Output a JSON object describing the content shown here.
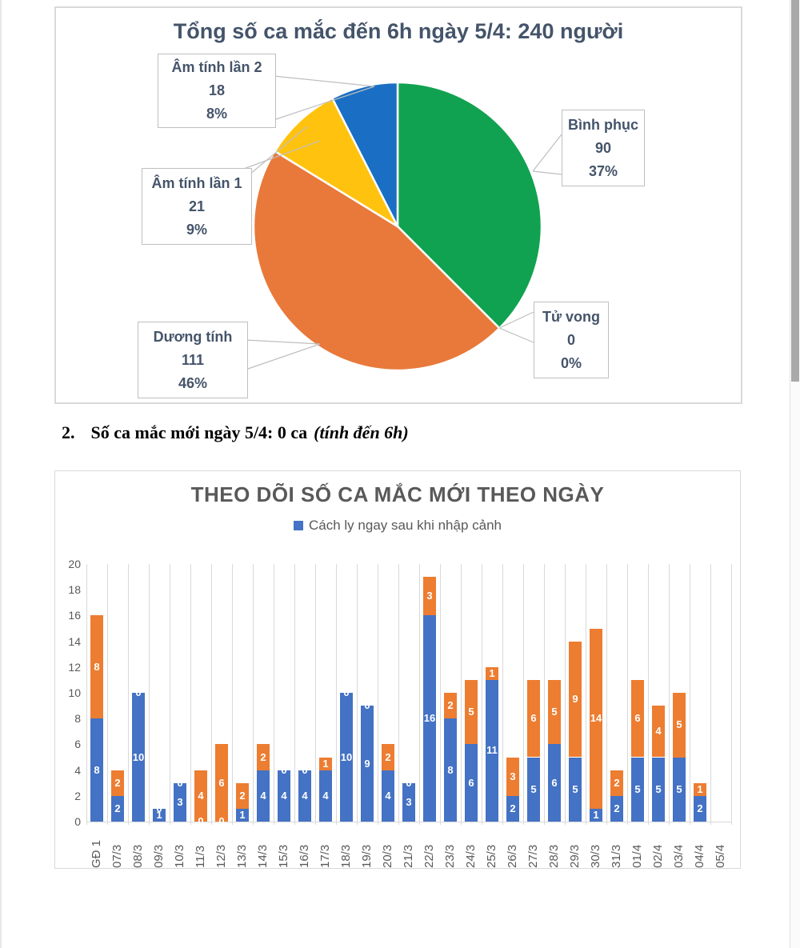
{
  "section_heading": {
    "number": "2.",
    "text": "Số ca mắc mới ngày 5/4: 0 ca",
    "suffix_italic": "(tính đến 6h)"
  },
  "colors": {
    "pie_green": "#10A250",
    "pie_orange": "#E8793A",
    "pie_yellow": "#FFC30F",
    "pie_blue": "#1A6FC4",
    "bar_blue": "#4472C4",
    "bar_orange": "#ED7D31",
    "pie_text": "#44546A",
    "bar_text": "#595959"
  },
  "chart_data": [
    {
      "type": "pie",
      "title": "Tổng số ca mắc đến 6h ngày 5/4: 240 người",
      "total": 240,
      "slices": [
        {
          "label": "Bình phục",
          "value": 90,
          "pct": "37%",
          "color": "#10A250"
        },
        {
          "label": "Tử vong",
          "value": 0,
          "pct": "0%",
          "color": "#808080"
        },
        {
          "label": "Dương tính",
          "value": 111,
          "pct": "46%",
          "color": "#E8793A"
        },
        {
          "label": "Âm tính lần 1",
          "value": 21,
          "pct": "9%",
          "color": "#FFC30F"
        },
        {
          "label": "Âm tính lần 2",
          "value": 18,
          "pct": "8%",
          "color": "#1A6FC4"
        }
      ]
    },
    {
      "type": "bar",
      "title": "THEO DÕI SỐ CA MẮC MỚI THEO NGÀY",
      "legend": [
        "Cách ly ngay sau khi nhập cảnh"
      ],
      "categories": [
        "GĐ 1",
        "07/3",
        "08/3",
        "09/3",
        "10/3",
        "11/3",
        "12/3",
        "13/3",
        "14/3",
        "15/3",
        "16/3",
        "17/3",
        "18/3",
        "19/3",
        "20/3",
        "21/3",
        "22/3",
        "23/3",
        "24/3",
        "25/3",
        "26/3",
        "27/3",
        "28/3",
        "29/3",
        "30/3",
        "31/3",
        "01/4",
        "02/4",
        "03/4",
        "04/4",
        "05/4"
      ],
      "series": [
        {
          "name": "Cách ly ngay sau khi nhập cảnh",
          "color": "#4472C4",
          "values": [
            8,
            2,
            10,
            1,
            3,
            0,
            0,
            1,
            4,
            4,
            4,
            4,
            10,
            9,
            4,
            3,
            16,
            8,
            6,
            11,
            2,
            5,
            6,
            5,
            1,
            2,
            5,
            5,
            5,
            2,
            0
          ]
        },
        {
          "color": "#ED7D31",
          "values": [
            8,
            2,
            0,
            0,
            0,
            4,
            6,
            2,
            2,
            0,
            0,
            1,
            0,
            0,
            2,
            0,
            3,
            2,
            5,
            1,
            3,
            6,
            5,
            9,
            14,
            2,
            6,
            4,
            5,
            1,
            0
          ]
        }
      ],
      "ylim": [
        0,
        20
      ],
      "yticks": [
        0,
        2,
        4,
        6,
        8,
        10,
        12,
        14,
        16,
        18,
        20
      ],
      "grid": "vertical",
      "legend_position": "top",
      "show_zero_labels": true
    }
  ]
}
